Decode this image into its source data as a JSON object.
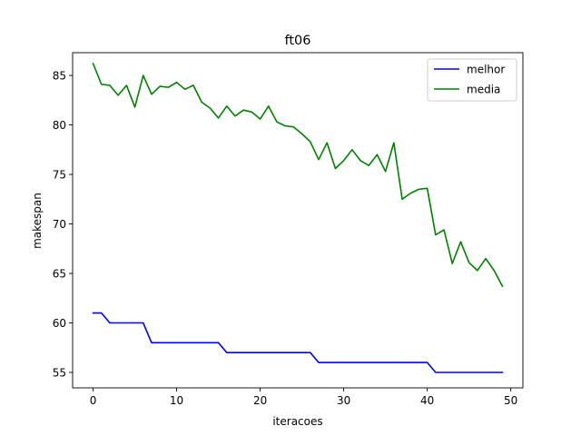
{
  "chart_data": {
    "type": "line",
    "title": "ft06",
    "xlabel": "iteracoes",
    "ylabel": "makespan",
    "xlim": [
      -2.45,
      51.45
    ],
    "ylim": [
      53.44,
      87.3
    ],
    "xticks": [
      0,
      10,
      20,
      30,
      40,
      50
    ],
    "yticks": [
      55,
      60,
      65,
      70,
      75,
      80,
      85
    ],
    "grid": false,
    "legend_position": "top-right",
    "x": [
      0,
      1,
      2,
      3,
      4,
      5,
      6,
      7,
      8,
      9,
      10,
      11,
      12,
      13,
      14,
      15,
      16,
      17,
      18,
      19,
      20,
      21,
      22,
      23,
      24,
      25,
      26,
      27,
      28,
      29,
      30,
      31,
      32,
      33,
      34,
      35,
      36,
      37,
      38,
      39,
      40,
      41,
      42,
      43,
      44,
      45,
      46,
      47,
      48,
      49
    ],
    "series": [
      {
        "name": "melhor",
        "color": "#0000ff",
        "values": [
          61,
          61,
          60,
          60,
          60,
          60,
          60,
          58,
          58,
          58,
          58,
          58,
          58,
          58,
          58,
          58,
          57,
          57,
          57,
          57,
          57,
          57,
          57,
          57,
          57,
          57,
          57,
          56,
          56,
          56,
          56,
          56,
          56,
          56,
          56,
          56,
          56,
          56,
          56,
          56,
          56,
          55,
          55,
          55,
          55,
          55,
          55,
          55,
          55,
          55
        ]
      },
      {
        "name": "media",
        "color": "#008000",
        "values": [
          86.2,
          84.1,
          84.0,
          83.0,
          84.0,
          81.8,
          85.0,
          83.1,
          83.9,
          83.8,
          84.3,
          83.6,
          84.0,
          82.3,
          81.7,
          80.7,
          81.9,
          80.9,
          81.5,
          81.3,
          80.6,
          81.9,
          80.3,
          79.9,
          79.8,
          79.1,
          78.3,
          76.5,
          78.2,
          75.6,
          76.4,
          77.5,
          76.4,
          75.9,
          77.0,
          75.3,
          78.2,
          72.5,
          73.1,
          73.5,
          73.6,
          68.9,
          69.4,
          66.0,
          68.2,
          66.1,
          65.3,
          66.5,
          65.3,
          63.7
        ]
      }
    ]
  }
}
